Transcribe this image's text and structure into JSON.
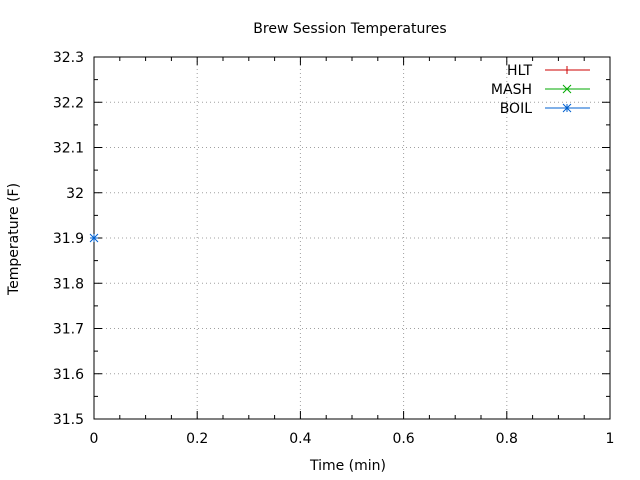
{
  "chart_data": {
    "type": "line",
    "title": "Brew Session Temperatures",
    "xlabel": "Time (min)",
    "ylabel": "Temperature (F)",
    "xlim": [
      0,
      1
    ],
    "ylim": [
      31.5,
      32.3
    ],
    "x_ticks": [
      "0",
      "0.2",
      "0.4",
      "0.6",
      "0.8",
      "1"
    ],
    "y_ticks": [
      "31.5",
      "31.6",
      "31.7",
      "31.8",
      "31.9",
      "32",
      "32.1",
      "32.2",
      "32.3"
    ],
    "grid": true,
    "legend_position": "top-right",
    "series": [
      {
        "name": "HLT",
        "color": "#cc0000",
        "marker": "plus",
        "points": []
      },
      {
        "name": "MASH",
        "color": "#00aa00",
        "marker": "cross",
        "points": []
      },
      {
        "name": "BOIL",
        "color": "#0060d0",
        "marker": "star",
        "points": [
          [
            0,
            31.9
          ]
        ]
      }
    ]
  }
}
